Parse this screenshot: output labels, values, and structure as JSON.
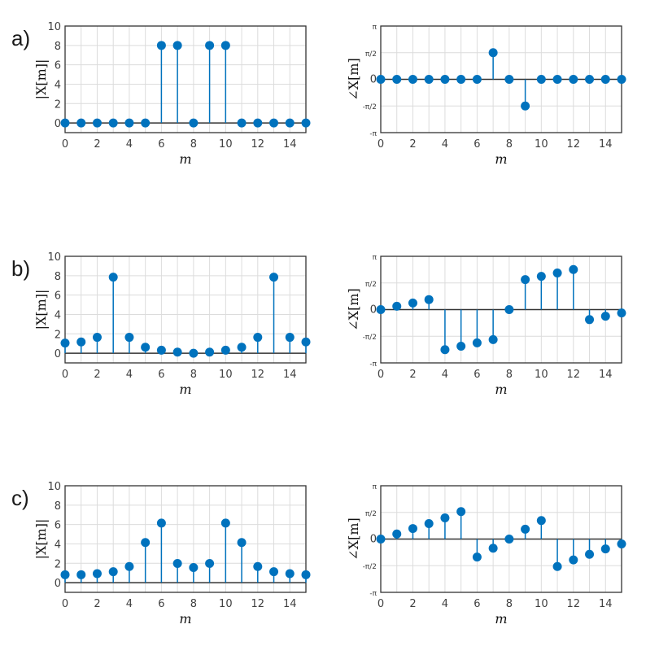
{
  "panel_labels": [
    "a)",
    "b)",
    "c)"
  ],
  "colors": {
    "stem": "#0072BD",
    "grid": "#dcdcdc",
    "axis": "#333333"
  },
  "chart_data": [
    {
      "panel": "a)",
      "type": "stem",
      "ylabel": "|X[m]|",
      "xlabel": "m",
      "x": [
        0,
        1,
        2,
        3,
        4,
        5,
        6,
        7,
        8,
        9,
        10,
        11,
        12,
        13,
        14,
        15
      ],
      "values": [
        0,
        0,
        0,
        0,
        0,
        0,
        8,
        8,
        0,
        8,
        8,
        0,
        0,
        0,
        0,
        0
      ],
      "xlim": [
        0,
        15
      ],
      "ylim": [
        -1,
        10
      ],
      "xticks": [
        "0",
        "2",
        "4",
        "6",
        "8",
        "10",
        "12",
        "14"
      ],
      "yticks": [
        "0",
        "2",
        "4",
        "6",
        "8",
        "10"
      ],
      "grid": true
    },
    {
      "panel": "a)",
      "type": "stem",
      "ylabel": "∠X[m]",
      "xlabel": "m",
      "x": [
        0,
        1,
        2,
        3,
        4,
        5,
        6,
        7,
        8,
        9,
        10,
        11,
        12,
        13,
        14,
        15
      ],
      "values": [
        0,
        0,
        0,
        0,
        0,
        0,
        0,
        1.571,
        0,
        -1.571,
        0,
        0,
        0,
        0,
        0,
        0
      ],
      "xlim": [
        0,
        15
      ],
      "ylim": [
        -3.1416,
        3.1416
      ],
      "xticks": [
        "0",
        "2",
        "4",
        "6",
        "8",
        "10",
        "12",
        "14"
      ],
      "yticks": [
        "-π",
        "-π/2",
        "0",
        "π/2",
        "π"
      ],
      "grid": true
    },
    {
      "panel": "b)",
      "type": "stem",
      "ylabel": "|X[m]|",
      "xlabel": "m",
      "x": [
        0,
        1,
        2,
        3,
        4,
        5,
        6,
        7,
        8,
        9,
        10,
        11,
        12,
        13,
        14,
        15
      ],
      "values": [
        1.05,
        1.16,
        1.64,
        7.85,
        1.64,
        0.62,
        0.31,
        0.11,
        0,
        0.11,
        0.31,
        0.62,
        1.64,
        7.85,
        1.64,
        1.16
      ],
      "xlim": [
        0,
        15
      ],
      "ylim": [
        -1,
        10
      ],
      "xticks": [
        "0",
        "2",
        "4",
        "6",
        "8",
        "10",
        "12",
        "14"
      ],
      "yticks": [
        "0",
        "2",
        "4",
        "6",
        "8",
        "10"
      ],
      "grid": true
    },
    {
      "panel": "b)",
      "type": "stem",
      "ylabel": "∠X[m]",
      "xlabel": "m",
      "x": [
        0,
        1,
        2,
        3,
        4,
        5,
        6,
        7,
        8,
        9,
        10,
        11,
        12,
        13,
        14,
        15
      ],
      "values": [
        0,
        0.2,
        0.39,
        0.59,
        -2.36,
        -2.16,
        -1.96,
        -1.77,
        0,
        1.77,
        1.96,
        2.16,
        2.36,
        -0.59,
        -0.39,
        -0.2
      ],
      "xlim": [
        0,
        15
      ],
      "ylim": [
        -3.1416,
        3.1416
      ],
      "xticks": [
        "0",
        "2",
        "4",
        "6",
        "8",
        "10",
        "12",
        "14"
      ],
      "yticks": [
        "-π",
        "-π/2",
        "0",
        "π/2",
        "π"
      ],
      "grid": true
    },
    {
      "panel": "c)",
      "type": "stem",
      "ylabel": "|X[m]|",
      "xlabel": "m",
      "x": [
        0,
        1,
        2,
        3,
        4,
        5,
        6,
        7,
        8,
        9,
        10,
        11,
        12,
        13,
        14,
        15
      ],
      "values": [
        0.82,
        0.82,
        0.93,
        1.13,
        1.67,
        4.14,
        6.15,
        1.98,
        1.56,
        1.98,
        6.15,
        4.14,
        1.67,
        1.13,
        0.93,
        0.82
      ],
      "xlim": [
        0,
        15
      ],
      "ylim": [
        -1,
        10
      ],
      "xticks": [
        "0",
        "2",
        "4",
        "6",
        "8",
        "10",
        "12",
        "14"
      ],
      "yticks": [
        "0",
        "2",
        "4",
        "6",
        "8",
        "10"
      ],
      "grid": true
    },
    {
      "panel": "c)",
      "type": "stem",
      "ylabel": "∠X[m]",
      "xlabel": "m",
      "x": [
        0,
        1,
        2,
        3,
        4,
        5,
        6,
        7,
        8,
        9,
        10,
        11,
        12,
        13,
        14,
        15
      ],
      "values": [
        0,
        0.3,
        0.62,
        0.91,
        1.25,
        1.62,
        -1.06,
        -0.54,
        0,
        0.58,
        1.09,
        -1.62,
        -1.23,
        -0.9,
        -0.58,
        -0.29
      ],
      "xlim": [
        0,
        15
      ],
      "ylim": [
        -3.1416,
        3.1416
      ],
      "xticks": [
        "0",
        "2",
        "4",
        "6",
        "8",
        "10",
        "12",
        "14"
      ],
      "yticks": [
        "-π",
        "-π/2",
        "0",
        "π/2",
        "π"
      ],
      "grid": true
    }
  ]
}
